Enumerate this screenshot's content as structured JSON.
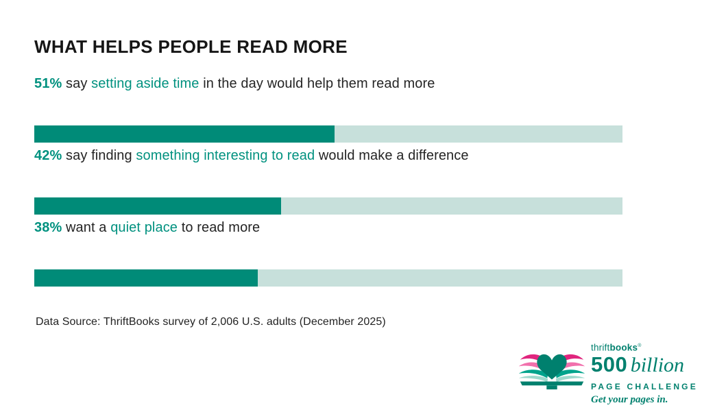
{
  "title": "WHAT HELPS PEOPLE READ MORE",
  "chart_data": {
    "type": "bar",
    "title": "WHAT HELPS PEOPLE READ MORE",
    "orientation": "horizontal",
    "categories": [
      "setting aside time",
      "something interesting to read",
      "quiet place"
    ],
    "values": [
      51,
      42,
      38
    ],
    "unit": "%",
    "xlim": [
      0,
      100
    ],
    "grid": false,
    "legend": "none",
    "items": [
      {
        "value_label": "51%",
        "pre": " say ",
        "highlight": "setting aside time",
        "post": " in the day would help them read more",
        "percent": 51
      },
      {
        "value_label": "42%",
        "pre": " say finding ",
        "highlight": "something interesting to read",
        "post": " would make a difference",
        "percent": 42
      },
      {
        "value_label": "38%",
        "pre": " want a ",
        "highlight": "quiet place",
        "post": " to read more",
        "percent": 38
      }
    ]
  },
  "source": "Data Source: ThriftBooks survey of 2,006 U.S. adults (December 2025)",
  "logo": {
    "brand_thrift": "thrift",
    "brand_books": "books",
    "trademark": "®",
    "big_number": "500",
    "big_word": "billion",
    "subtitle": "PAGE CHALLENGE",
    "tagline": "Get your pages in.",
    "icon": "open-book-heart-icon"
  },
  "colors": {
    "accent": "#00917F",
    "bar-fill": "#008B78",
    "bar-track": "#C7E0DB",
    "ink": "#1E1E1E",
    "logo-teal": "#00806E",
    "pink-deep": "#E0257E",
    "pink-light": "#F170AC",
    "page-teal": "#00A38C",
    "page-teal-light": "#9ED9CD"
  }
}
